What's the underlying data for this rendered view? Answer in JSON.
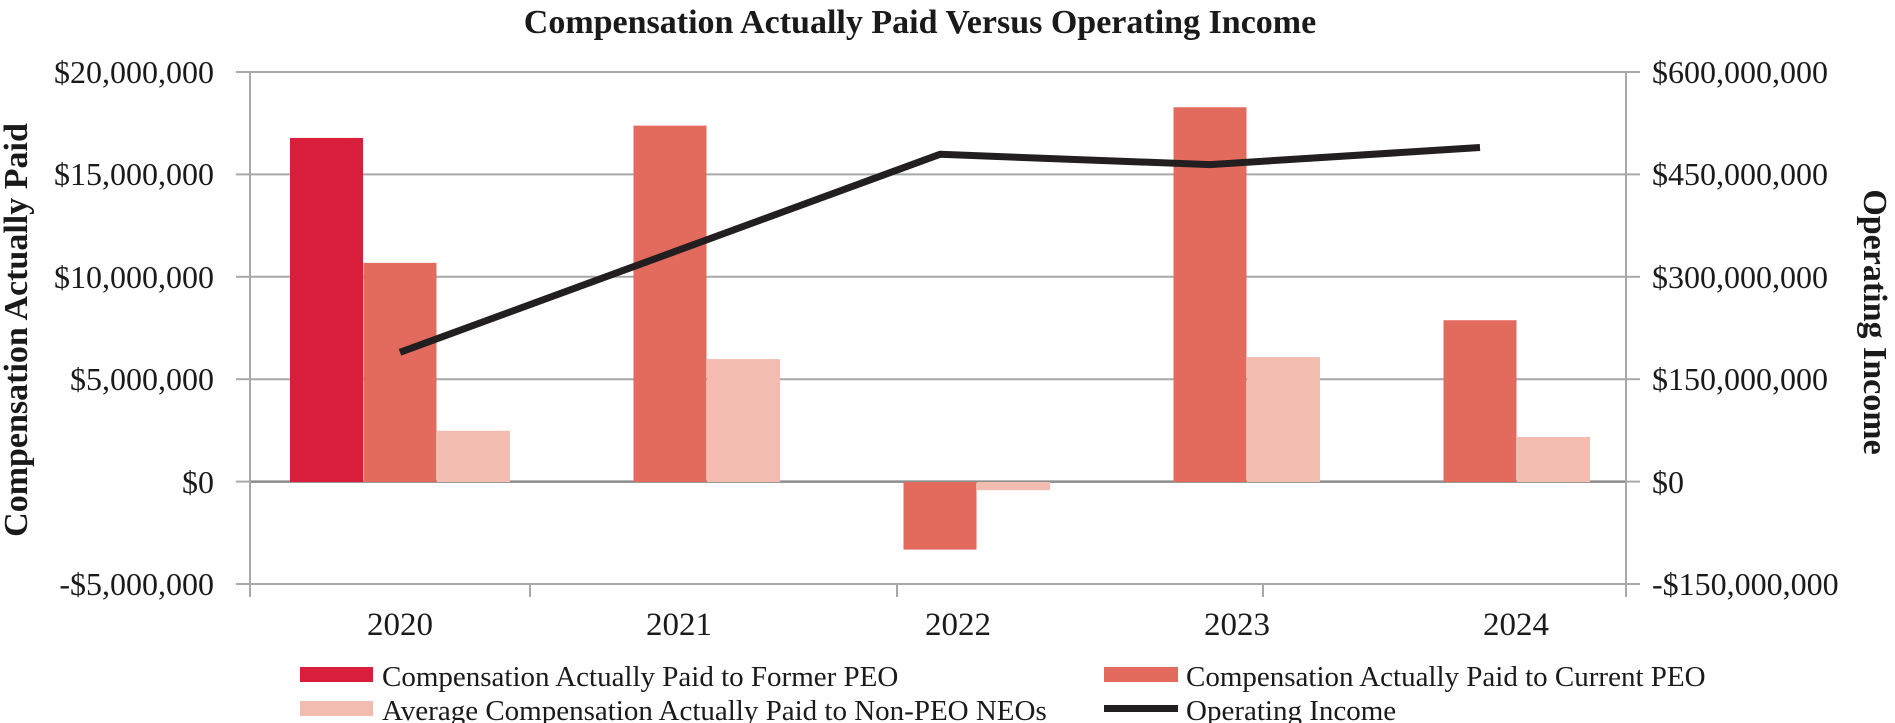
{
  "chart_data": {
    "type": "combo_bar_line",
    "title": "Compensation Actually Paid Versus Operating Income",
    "categories": [
      "2020",
      "2021",
      "2022",
      "2023",
      "2024"
    ],
    "series": [
      {
        "name": "Compensation Actually Paid to Former PEO",
        "type": "bar",
        "axis": "left",
        "color": "#D81E3B",
        "values": [
          16800000,
          null,
          null,
          null,
          null
        ]
      },
      {
        "name": "Compensation Actually Paid to Current PEO",
        "type": "bar",
        "axis": "left",
        "color": "#E26B5E",
        "values": [
          10700000,
          17400000,
          -3300000,
          18300000,
          7900000
        ]
      },
      {
        "name": "Average Compensation Actually Paid to Non-PEO NEOs",
        "type": "bar",
        "axis": "left",
        "color": "#F2BCB1",
        "values": [
          2500000,
          6000000,
          -400000,
          6100000,
          2200000
        ]
      },
      {
        "name": "Operating Income",
        "type": "line",
        "axis": "right",
        "color": "#231F20",
        "values": [
          190000000,
          335000000,
          480000000,
          465000000,
          490000000
        ]
      }
    ],
    "left_axis": {
      "title": "Compensation Actually Paid",
      "min": -5000000,
      "max": 20000000,
      "step": 5000000,
      "tick_labels": [
        "$20,000,000",
        "$15,000,000",
        "$10,000,000",
        "$5,000,000",
        "$0",
        "-$5,000,000"
      ]
    },
    "right_axis": {
      "title": "Operating Income",
      "min": -150000000,
      "max": 600000000,
      "step": 150000000,
      "tick_labels": [
        "$600,000,000",
        "$450,000,000",
        "$300,000,000",
        "$150,000,000",
        "$0",
        "-$150,000,000"
      ]
    },
    "grid": true,
    "legend_position": "bottom",
    "colors": {
      "gridline": "#A8A8A8",
      "zero_line": "#8C8C8C",
      "axis_line": "#A8A8A8",
      "text": "#1A1A1A"
    }
  }
}
